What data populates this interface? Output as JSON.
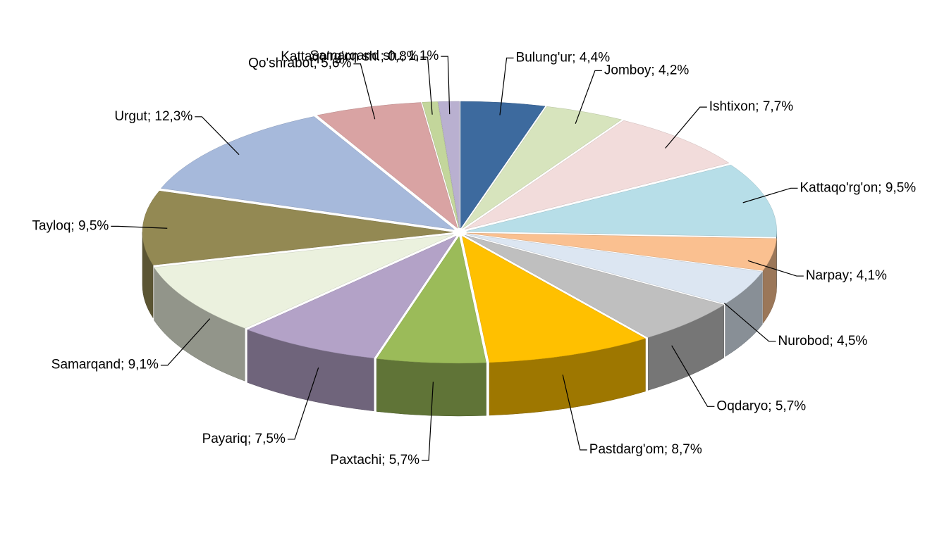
{
  "chart_data": {
    "type": "pie3d",
    "label_separator": "; ",
    "categories": [
      "Bulung'ur",
      "Jomboy",
      "Ishtixon",
      "Kattaqo'rg'on",
      "Narpay",
      "Nurobod",
      "Oqdaryo",
      "Pastdarg'om",
      "Paxtachi",
      "Payariq",
      "Samarqand",
      "Tayloq",
      "Urgut",
      "Qo'shrabot",
      "Kattaqo'rg'on sh.",
      "Samarqand sh."
    ],
    "values": [
      4.4,
      4.2,
      7.7,
      9.5,
      4.1,
      4.5,
      5.7,
      8.7,
      5.7,
      7.5,
      9.1,
      9.5,
      12.3,
      5.6,
      0.8,
      1.1
    ],
    "value_labels": [
      "4,4%",
      "4,2%",
      "7,7%",
      "9,5%",
      "4,1%",
      "4,5%",
      "5,7%",
      "8,7%",
      "5,7%",
      "7,5%",
      "9,1%",
      "9,5%",
      "12,3%",
      "5,6%",
      "0,8%",
      "1,1%"
    ],
    "colors": [
      "#3d6a9e",
      "#d7e4bd",
      "#f2dcdb",
      "#b7dee8",
      "#fac090",
      "#dce6f2",
      "#bfbfbf",
      "#ffc000",
      "#9bbb59",
      "#b3a2c7",
      "#ebf1de",
      "#938953",
      "#a6b9db",
      "#d9a3a3",
      "#c3d69b",
      "#b9b0d0"
    ]
  }
}
